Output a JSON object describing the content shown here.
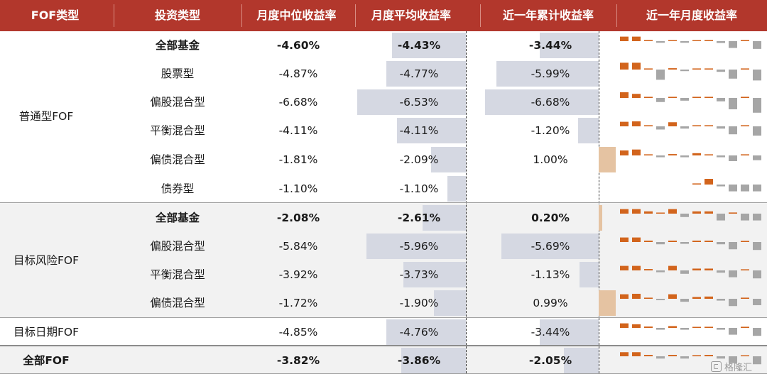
{
  "headers": {
    "fof_type": "FOF类型",
    "invest_type": "投资类型",
    "monthly_median": "月度中位收益率",
    "monthly_avg": "月度平均收益率",
    "one_year_cum": "近一年累计收益率",
    "one_year_monthly": "近一年月度收益率"
  },
  "colors": {
    "header_bg": "#b2372c",
    "negative_bar": "#d5d8e2",
    "positive_bar": "#e5c3a2",
    "spark_positive": "#d2641c",
    "spark_negative": "#a6a6a6",
    "shaded_group_bg": "#f2f2f2"
  },
  "groups": [
    {
      "label": "普通型FOF"
    },
    {
      "label": "目标风险FOF"
    },
    {
      "label": "目标日期FOF"
    },
    {
      "label": "全部FOF"
    }
  ],
  "rows": [
    {
      "invest_type": "全部基金",
      "median": "-4.60%",
      "avg": "-4.43%",
      "cum": "-3.44%",
      "avg_value": -4.43,
      "cum_value": -3.44,
      "bold": true,
      "monthly": [
        2.0,
        2.0,
        0.5,
        -0.7,
        0.4,
        -0.7,
        0.4,
        0.5,
        -0.8,
        -3.0,
        0.5,
        -3.4
      ]
    },
    {
      "invest_type": "股票型",
      "median": "-4.87%",
      "avg": "-4.77%",
      "cum": "-5.99%",
      "avg_value": -4.77,
      "cum_value": -5.99,
      "bold": false,
      "monthly": [
        3.0,
        3.0,
        0.5,
        -4.5,
        0.6,
        -0.7,
        0.5,
        0.5,
        -1.0,
        -4.0,
        0.5,
        -4.8
      ]
    },
    {
      "invest_type": "偏股混合型",
      "median": "-6.68%",
      "avg": "-6.53%",
      "cum": "-6.68%",
      "avg_value": -6.53,
      "cum_value": -6.68,
      "bold": false,
      "monthly": [
        2.5,
        1.8,
        0.5,
        -1.8,
        0.5,
        -1.2,
        0.5,
        0.5,
        -1.5,
        -5.0,
        0.5,
        -6.5
      ]
    },
    {
      "invest_type": "平衡混合型",
      "median": "-4.11%",
      "avg": "-4.11%",
      "cum": "-1.20%",
      "avg_value": -4.11,
      "cum_value": -1.2,
      "bold": false,
      "monthly": [
        2.0,
        2.2,
        0.5,
        -1.4,
        1.8,
        -1.0,
        0.5,
        0.5,
        -1.0,
        -3.5,
        0.5,
        -4.1
      ]
    },
    {
      "invest_type": "偏债混合型",
      "median": "-1.81%",
      "avg": "-2.09%",
      "cum": "1.00%",
      "avg_value": -2.09,
      "cum_value": 1.0,
      "bold": false,
      "monthly": [
        2.2,
        2.6,
        0.5,
        -0.8,
        0.6,
        -0.8,
        1.0,
        0.5,
        -0.8,
        -2.5,
        0.5,
        -2.1
      ]
    },
    {
      "invest_type": "债券型",
      "median": "-1.10%",
      "avg": "-1.10%",
      "cum": "",
      "avg_value": -1.1,
      "cum_value": 0,
      "bold": false,
      "monthly": [
        null,
        null,
        null,
        null,
        null,
        null,
        0.5,
        2.5,
        -0.8,
        -3.0,
        -3.0,
        -3.0
      ]
    },
    {
      "invest_type": "全部基金",
      "median": "-2.08%",
      "avg": "-2.61%",
      "cum": "0.20%",
      "avg_value": -2.61,
      "cum_value": 0.2,
      "bold": true,
      "monthly": [
        2.0,
        2.0,
        1.0,
        0.4,
        2.0,
        -1.5,
        1.0,
        1.0,
        -3.0,
        0.5,
        -3.0,
        -3.0
      ]
    },
    {
      "invest_type": "偏股混合型",
      "median": "-5.84%",
      "avg": "-5.96%",
      "cum": "-5.69%",
      "avg_value": -5.96,
      "cum_value": -5.69,
      "bold": false,
      "monthly": [
        2.0,
        2.0,
        0.6,
        -1.0,
        0.6,
        -0.8,
        0.6,
        0.6,
        -1.0,
        -3.2,
        0.5,
        -3.5
      ]
    },
    {
      "invest_type": "平衡混合型",
      "median": "-3.92%",
      "avg": "-3.73%",
      "cum": "-1.13%",
      "avg_value": -3.73,
      "cum_value": -1.13,
      "bold": false,
      "monthly": [
        2.0,
        2.0,
        0.6,
        -0.8,
        2.0,
        -1.5,
        0.8,
        0.8,
        -1.0,
        -3.0,
        0.5,
        -3.5
      ]
    },
    {
      "invest_type": "偏债混合型",
      "median": "-1.72%",
      "avg": "-1.90%",
      "cum": "0.99%",
      "avg_value": -1.9,
      "cum_value": 0.99,
      "bold": false,
      "monthly": [
        2.0,
        2.2,
        0.5,
        -0.6,
        2.0,
        -1.3,
        0.8,
        1.0,
        -0.8,
        -3.2,
        0.5,
        -2.8
      ]
    },
    {
      "invest_type": "",
      "median": "-4.85%",
      "avg": "-4.76%",
      "cum": "-3.44%",
      "avg_value": -4.76,
      "cum_value": -3.44,
      "bold": false,
      "monthly": [
        2.0,
        1.6,
        0.6,
        -0.8,
        0.8,
        -0.8,
        0.4,
        0.5,
        -0.8,
        -3.0,
        0.5,
        -3.5
      ]
    },
    {
      "invest_type": "",
      "median": "-3.82%",
      "avg": "-3.86%",
      "cum": "-2.05%",
      "avg_value": -3.86,
      "cum_value": -2.05,
      "bold": true,
      "monthly": [
        1.8,
        1.8,
        0.6,
        -1.0,
        0.6,
        -1.0,
        0.5,
        0.6,
        -1.0,
        -3.0,
        0.4,
        -3.5
      ]
    }
  ],
  "watermark": "格隆汇"
}
